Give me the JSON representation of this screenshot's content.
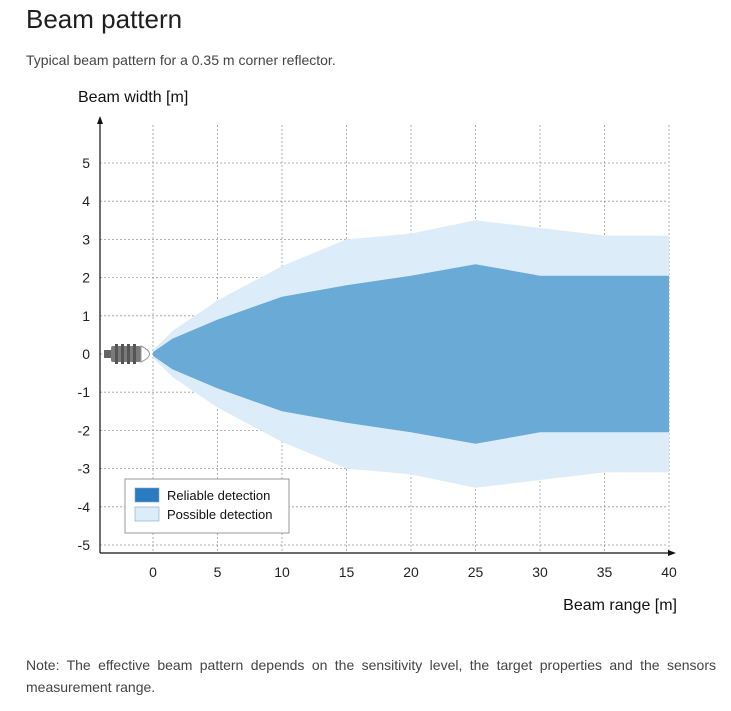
{
  "page": {
    "title": "Beam pattern",
    "subtitle": "Typical beam pattern for a 0.35 m corner reflector.",
    "note": "Note: The effective beam pattern depends on the sensitivity level, the target properties and the sensors measurement range."
  },
  "chart_data": {
    "type": "area",
    "xlabel": "Beam range [m]",
    "ylabel": "Beam width [m]",
    "xlim": [
      -4,
      40
    ],
    "ylim": [
      -5.5,
      5.5
    ],
    "x_ticks": [
      0,
      5,
      10,
      15,
      20,
      25,
      30,
      35,
      40
    ],
    "y_ticks": [
      5,
      4,
      3,
      2,
      1,
      0,
      -1,
      -2,
      -3,
      -4,
      -5
    ],
    "grid": true,
    "legend_position": "bottom-left",
    "series": [
      {
        "name": "Possible detection",
        "color": "#dcecf8",
        "x": [
          0,
          1.5,
          5,
          10,
          15,
          20,
          25,
          30,
          35,
          40
        ],
        "upper": [
          0.1,
          0.6,
          1.4,
          2.3,
          3.0,
          3.15,
          3.5,
          3.3,
          3.1,
          3.1
        ],
        "lower": [
          -0.1,
          -0.6,
          -1.4,
          -2.3,
          -3.0,
          -3.15,
          -3.5,
          -3.3,
          -3.1,
          -3.1
        ]
      },
      {
        "name": "Reliable detection",
        "color": "#6aaad6",
        "x": [
          0,
          1.5,
          5,
          10,
          15,
          20,
          25,
          30,
          35,
          40
        ],
        "upper": [
          0.05,
          0.4,
          0.9,
          1.5,
          1.8,
          2.05,
          2.35,
          2.05,
          2.05,
          2.05
        ],
        "lower": [
          -0.05,
          -0.4,
          -0.9,
          -1.5,
          -1.8,
          -2.05,
          -2.35,
          -2.05,
          -2.05,
          -2.05
        ]
      }
    ],
    "legend": [
      {
        "label": "Reliable detection",
        "color": "#2b7bbf"
      },
      {
        "label": "Possible detection",
        "color": "#dcecf8"
      }
    ],
    "sensor_icon": "ultrasonic-sensor-icon"
  }
}
